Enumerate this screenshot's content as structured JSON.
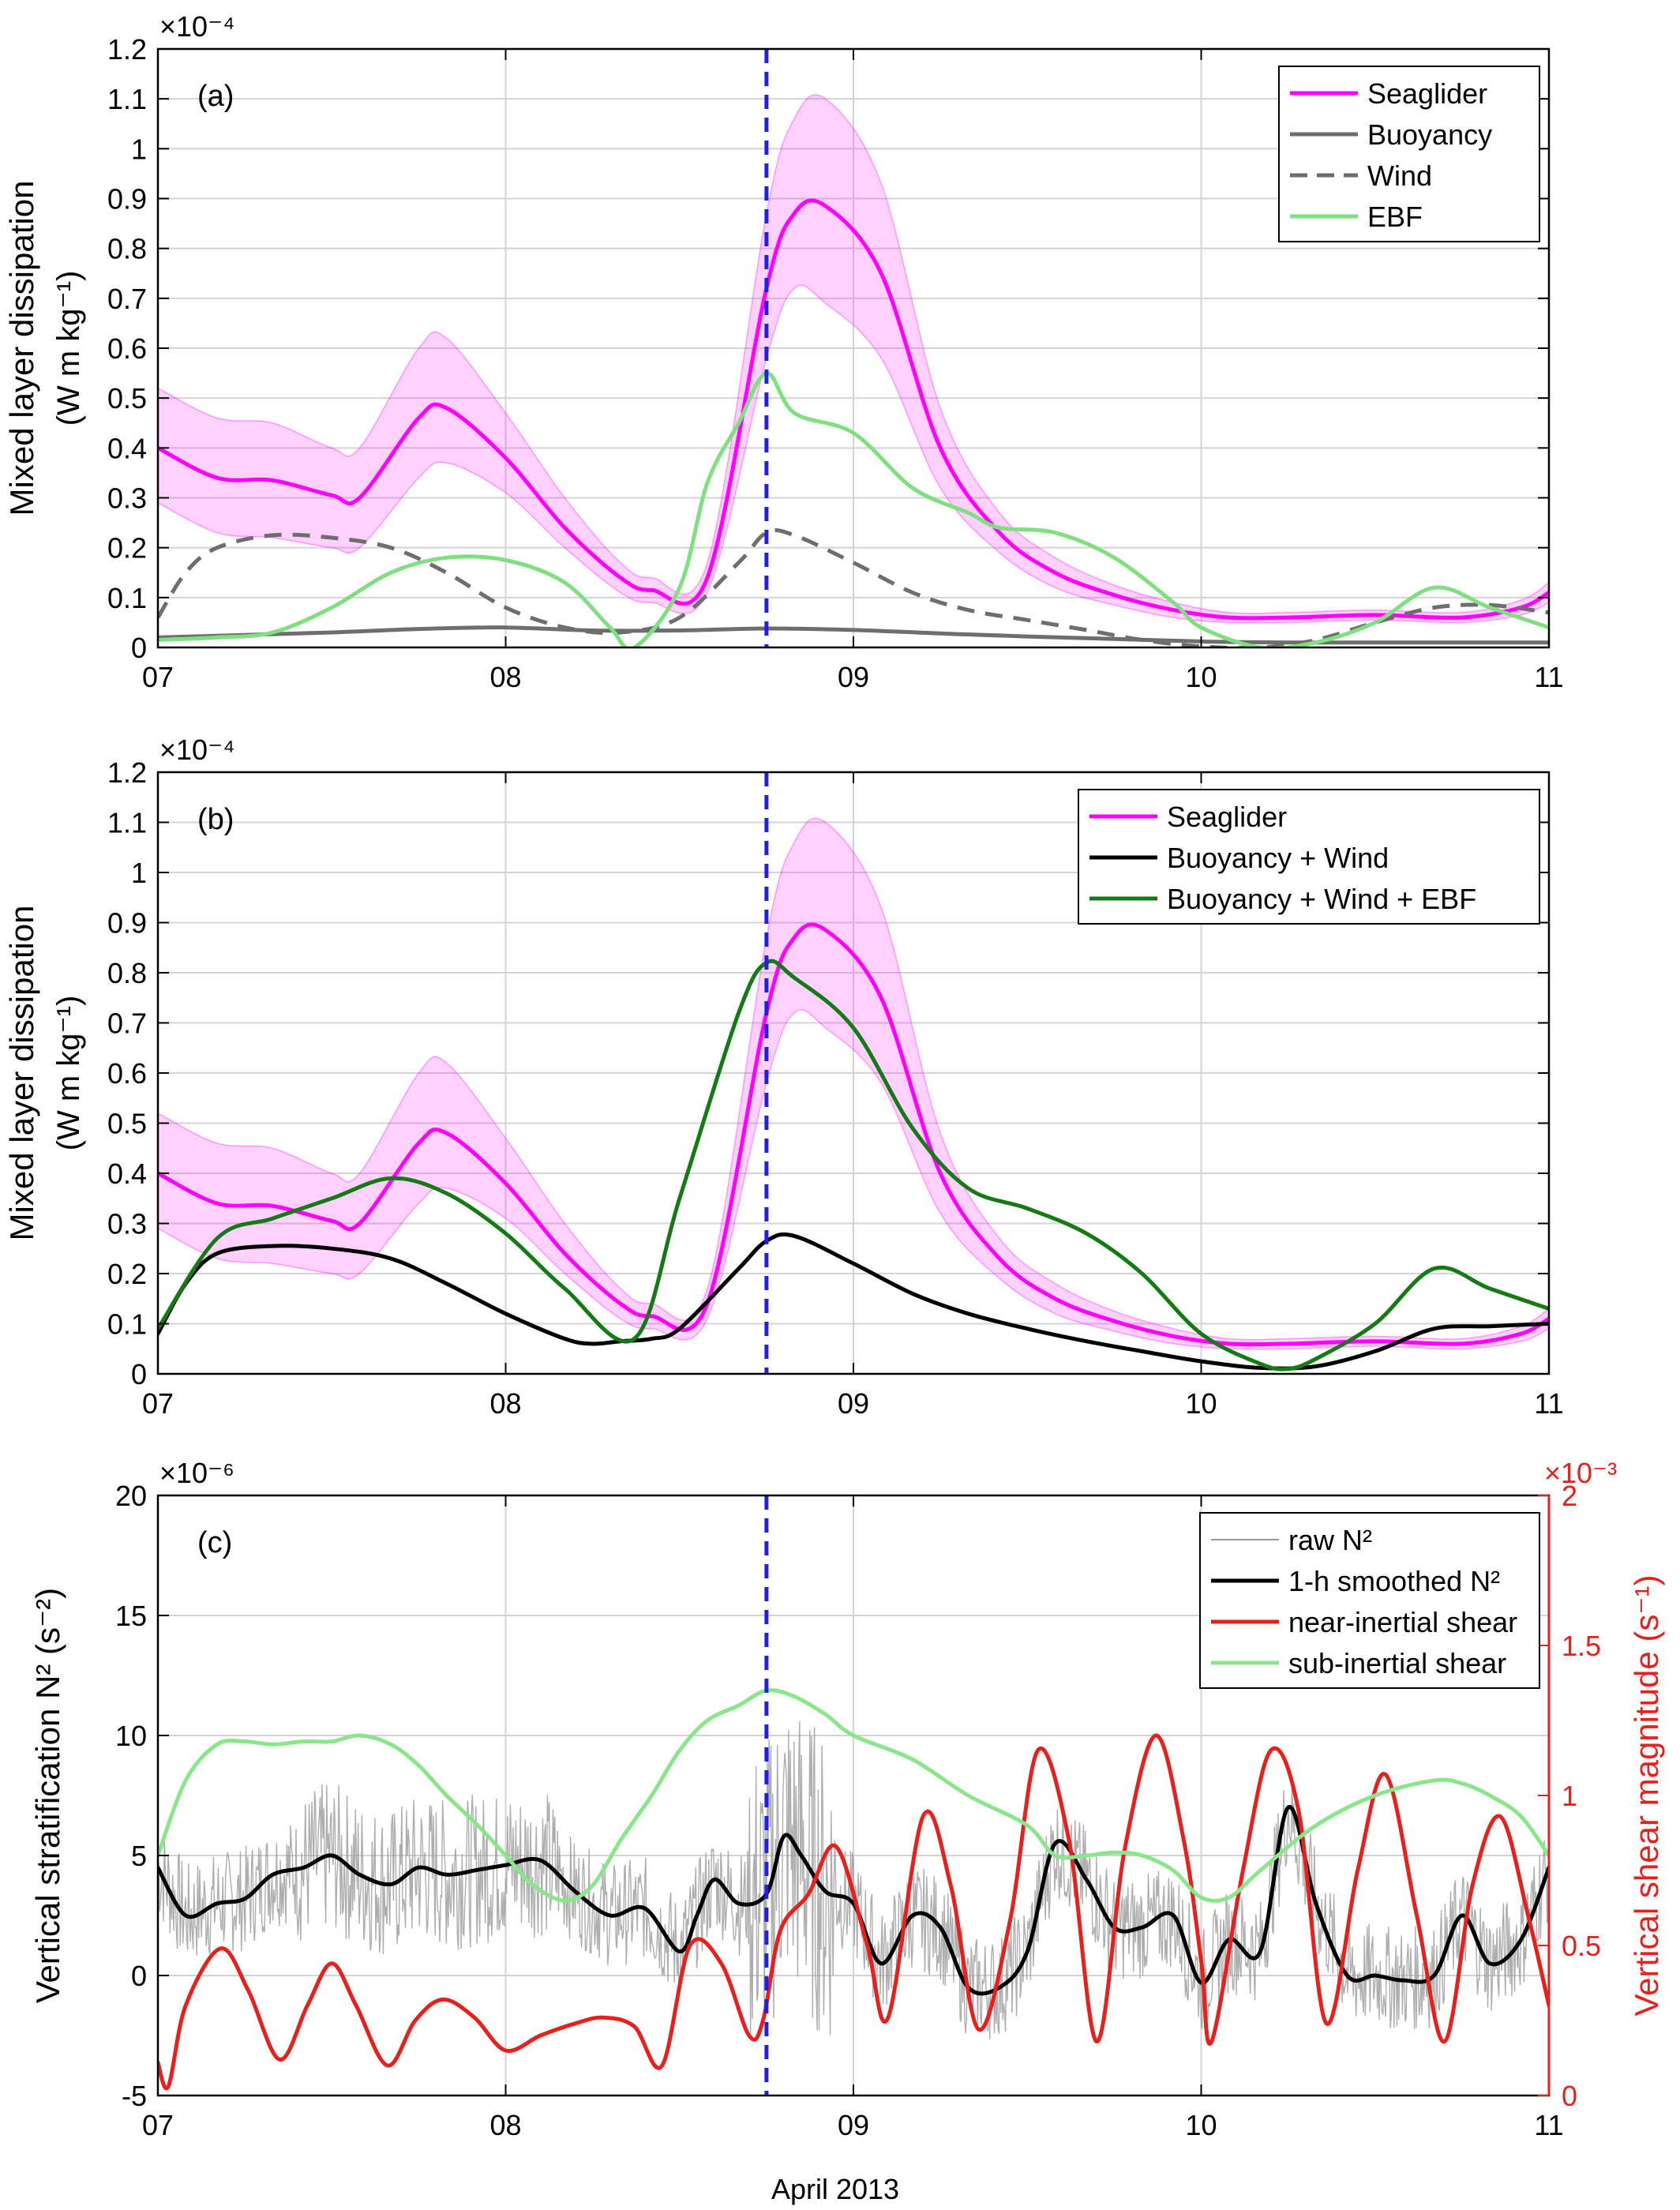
{
  "x_axis": {
    "ticks": [
      7,
      8,
      9,
      10,
      11
    ],
    "tick_labels": [
      "07",
      "08",
      "09",
      "10",
      "11"
    ],
    "label": "April 2013",
    "range": [
      7,
      11
    ]
  },
  "event_line": {
    "x": 8.75,
    "color": "#1f1fe6"
  },
  "chart_data": [
    {
      "panel": "(a)",
      "type": "line",
      "ylabel_line1": "Mixed layer dissipation",
      "ylabel_line2": "(W m kg⁻¹)",
      "y_exponent": "×10⁻⁴",
      "ylim": [
        0,
        1.2
      ],
      "yticks": [
        0,
        0.1,
        0.2,
        0.3,
        0.4,
        0.5,
        0.6,
        0.7,
        0.8,
        0.9,
        1,
        1.1,
        1.2
      ],
      "ytick_labels": [
        "0",
        "0.1",
        "0.2",
        "0.3",
        "0.4",
        "0.5",
        "0.6",
        "0.7",
        "0.8",
        "0.9",
        "1",
        "1.1",
        "1.2"
      ],
      "legend_position": "top-right",
      "series": [
        {
          "name": "Seaglider",
          "color": "#ff00ff",
          "style": "solid",
          "x": [
            7.0,
            7.17,
            7.33,
            7.5,
            7.58,
            7.75,
            7.83,
            8.0,
            8.17,
            8.33,
            8.42,
            8.58,
            8.75,
            8.83,
            8.92,
            9.08,
            9.25,
            9.42,
            9.58,
            9.75,
            9.92,
            10.08,
            10.25,
            10.5,
            10.75,
            10.92,
            11.0
          ],
          "y": [
            0.4,
            0.34,
            0.335,
            0.305,
            0.3,
            0.46,
            0.48,
            0.38,
            0.24,
            0.14,
            0.115,
            0.14,
            0.72,
            0.87,
            0.885,
            0.75,
            0.4,
            0.23,
            0.15,
            0.105,
            0.075,
            0.06,
            0.06,
            0.065,
            0.06,
            0.08,
            0.11
          ],
          "band_low": [
            0.29,
            0.23,
            0.22,
            0.2,
            0.2,
            0.34,
            0.37,
            0.31,
            0.2,
            0.11,
            0.09,
            0.11,
            0.58,
            0.72,
            0.69,
            0.58,
            0.32,
            0.19,
            0.12,
            0.085,
            0.06,
            0.05,
            0.05,
            0.055,
            0.05,
            0.065,
            0.09
          ],
          "band_high": [
            0.52,
            0.46,
            0.45,
            0.4,
            0.4,
            0.6,
            0.62,
            0.47,
            0.3,
            0.17,
            0.14,
            0.17,
            0.87,
            1.06,
            1.1,
            0.93,
            0.48,
            0.27,
            0.18,
            0.125,
            0.09,
            0.07,
            0.07,
            0.075,
            0.07,
            0.095,
            0.13
          ]
        },
        {
          "name": "Buoyancy",
          "color": "#6e6e6e",
          "style": "solid",
          "x": [
            7.0,
            7.25,
            7.5,
            7.75,
            8.0,
            8.25,
            8.5,
            8.75,
            9.0,
            9.25,
            9.5,
            9.75,
            10.0,
            10.25,
            10.5,
            10.75,
            11.0
          ],
          "y": [
            0.02,
            0.025,
            0.03,
            0.037,
            0.04,
            0.034,
            0.034,
            0.038,
            0.035,
            0.028,
            0.022,
            0.017,
            0.012,
            0.01,
            0.01,
            0.01,
            0.01
          ]
        },
        {
          "name": "Wind",
          "color": "#6e6e6e",
          "style": "dashed",
          "x": [
            7.0,
            7.08,
            7.17,
            7.33,
            7.5,
            7.67,
            7.83,
            8.0,
            8.17,
            8.33,
            8.5,
            8.67,
            8.75,
            8.83,
            9.0,
            9.17,
            9.33,
            9.5,
            9.67,
            9.83,
            10.0,
            10.17,
            10.33,
            10.5,
            10.67,
            10.83,
            11.0
          ],
          "y": [
            0.06,
            0.15,
            0.2,
            0.225,
            0.22,
            0.2,
            0.15,
            0.08,
            0.04,
            0.03,
            0.06,
            0.17,
            0.23,
            0.225,
            0.17,
            0.11,
            0.075,
            0.055,
            0.035,
            0.015,
            0.002,
            0.0,
            0.015,
            0.05,
            0.08,
            0.085,
            0.07
          ]
        },
        {
          "name": "EBF",
          "color": "#7fe07f",
          "style": "solid",
          "x": [
            7.0,
            7.17,
            7.33,
            7.5,
            7.67,
            7.83,
            8.0,
            8.17,
            8.3,
            8.37,
            8.5,
            8.58,
            8.67,
            8.75,
            8.83,
            9.0,
            9.17,
            9.33,
            9.42,
            9.58,
            9.75,
            9.92,
            10.0,
            10.17,
            10.33,
            10.5,
            10.67,
            10.83,
            11.0
          ],
          "y": [
            0.015,
            0.02,
            0.03,
            0.08,
            0.15,
            0.18,
            0.175,
            0.13,
            0.04,
            0.0,
            0.12,
            0.33,
            0.45,
            0.55,
            0.47,
            0.43,
            0.32,
            0.27,
            0.24,
            0.23,
            0.18,
            0.09,
            0.04,
            0.0,
            0.01,
            0.05,
            0.12,
            0.08,
            0.04
          ]
        }
      ]
    },
    {
      "panel": "(b)",
      "type": "line",
      "ylabel_line1": "Mixed layer dissipation",
      "ylabel_line2": "(W m kg⁻¹)",
      "y_exponent": "×10⁻⁴",
      "ylim": [
        0,
        1.2
      ],
      "yticks": [
        0,
        0.1,
        0.2,
        0.3,
        0.4,
        0.5,
        0.6,
        0.7,
        0.8,
        0.9,
        1,
        1.1,
        1.2
      ],
      "ytick_labels": [
        "0",
        "0.1",
        "0.2",
        "0.3",
        "0.4",
        "0.5",
        "0.6",
        "0.7",
        "0.8",
        "0.9",
        "1",
        "1.1",
        "1.2"
      ],
      "legend_position": "top-right",
      "series": [
        {
          "name": "Seaglider",
          "color": "#ff00ff",
          "style": "solid",
          "x": [
            7.0,
            7.17,
            7.33,
            7.5,
            7.58,
            7.75,
            7.83,
            8.0,
            8.17,
            8.33,
            8.42,
            8.58,
            8.75,
            8.83,
            8.92,
            9.08,
            9.25,
            9.42,
            9.58,
            9.75,
            9.92,
            10.08,
            10.25,
            10.5,
            10.75,
            10.92,
            11.0
          ],
          "y": [
            0.4,
            0.34,
            0.335,
            0.305,
            0.3,
            0.46,
            0.48,
            0.38,
            0.24,
            0.14,
            0.115,
            0.14,
            0.72,
            0.87,
            0.885,
            0.75,
            0.4,
            0.23,
            0.15,
            0.105,
            0.075,
            0.06,
            0.06,
            0.065,
            0.06,
            0.08,
            0.11
          ],
          "band_low": [
            0.29,
            0.23,
            0.22,
            0.2,
            0.2,
            0.34,
            0.37,
            0.31,
            0.2,
            0.11,
            0.09,
            0.11,
            0.58,
            0.72,
            0.69,
            0.58,
            0.32,
            0.19,
            0.12,
            0.085,
            0.06,
            0.05,
            0.05,
            0.055,
            0.05,
            0.065,
            0.09
          ],
          "band_high": [
            0.52,
            0.46,
            0.45,
            0.4,
            0.4,
            0.6,
            0.62,
            0.47,
            0.3,
            0.17,
            0.14,
            0.17,
            0.87,
            1.06,
            1.1,
            0.93,
            0.48,
            0.27,
            0.18,
            0.125,
            0.09,
            0.07,
            0.07,
            0.075,
            0.07,
            0.095,
            0.13
          ]
        },
        {
          "name": "Buoyancy + Wind",
          "color": "#000000",
          "style": "solid",
          "x": [
            7.0,
            7.08,
            7.17,
            7.33,
            7.5,
            7.67,
            7.83,
            8.0,
            8.17,
            8.25,
            8.33,
            8.42,
            8.5,
            8.67,
            8.75,
            8.83,
            9.0,
            9.17,
            9.33,
            9.5,
            9.67,
            9.83,
            10.0,
            10.17,
            10.33,
            10.5,
            10.67,
            10.83,
            11.0
          ],
          "y": [
            0.08,
            0.18,
            0.24,
            0.255,
            0.25,
            0.23,
            0.18,
            0.12,
            0.07,
            0.06,
            0.065,
            0.07,
            0.09,
            0.21,
            0.265,
            0.275,
            0.22,
            0.16,
            0.12,
            0.09,
            0.065,
            0.045,
            0.025,
            0.012,
            0.015,
            0.045,
            0.09,
            0.095,
            0.1
          ]
        },
        {
          "name": "Buoyancy + Wind + EBF",
          "color": "#147a14",
          "style": "solid",
          "x": [
            7.0,
            7.17,
            7.33,
            7.5,
            7.67,
            7.83,
            8.0,
            8.17,
            8.37,
            8.5,
            8.67,
            8.75,
            8.83,
            9.0,
            9.17,
            9.33,
            9.5,
            9.67,
            9.83,
            10.0,
            10.17,
            10.25,
            10.33,
            10.5,
            10.67,
            10.83,
            11.0
          ],
          "y": [
            0.09,
            0.27,
            0.31,
            0.35,
            0.39,
            0.36,
            0.28,
            0.17,
            0.07,
            0.35,
            0.72,
            0.82,
            0.79,
            0.69,
            0.49,
            0.37,
            0.33,
            0.28,
            0.2,
            0.08,
            0.02,
            0.01,
            0.03,
            0.1,
            0.21,
            0.17,
            0.13
          ]
        }
      ]
    },
    {
      "panel": "(c)",
      "type": "line",
      "ylabel": "Vertical stratification N² (s⁻²)",
      "y_exponent": "×10⁻⁶",
      "ylim": [
        -5,
        20
      ],
      "yticks": [
        -5,
        0,
        5,
        10,
        15,
        20
      ],
      "ytick_labels": [
        "-5",
        "0",
        "5",
        "10",
        "15",
        "20"
      ],
      "y2label": "Vertical shear magnitude (s⁻¹)",
      "y2_exponent": "×10⁻³",
      "y2lim": [
        0,
        2
      ],
      "y2ticks": [
        0,
        0.5,
        1,
        1.5,
        2
      ],
      "y2tick_labels": [
        "0",
        "0.5",
        "1",
        "1.5",
        "2"
      ],
      "y2_color": "#e8201c",
      "legend_position": "top-right",
      "series": [
        {
          "name": "raw N²",
          "color": "#9a9a9a",
          "style": "solid",
          "axis": "left",
          "noise_around": "1-h smoothed N²"
        },
        {
          "name": "1-h smoothed N²",
          "color": "#000000",
          "style": "solid",
          "axis": "left",
          "x": [
            7.0,
            7.08,
            7.17,
            7.25,
            7.33,
            7.42,
            7.5,
            7.58,
            7.67,
            7.75,
            7.83,
            7.92,
            8.0,
            8.1,
            8.2,
            8.3,
            8.4,
            8.5,
            8.55,
            8.6,
            8.67,
            8.75,
            8.8,
            8.85,
            8.92,
            9.0,
            9.08,
            9.17,
            9.25,
            9.33,
            9.42,
            9.5,
            9.58,
            9.67,
            9.75,
            9.83,
            9.92,
            10.0,
            10.08,
            10.17,
            10.25,
            10.33,
            10.42,
            10.5,
            10.58,
            10.67,
            10.75,
            10.83,
            10.92,
            11.0
          ],
          "y": [
            4.5,
            2.5,
            3.0,
            3.2,
            4.2,
            4.5,
            5.0,
            4.2,
            3.8,
            4.5,
            4.2,
            4.4,
            4.6,
            4.8,
            3.5,
            2.5,
            2.8,
            1.0,
            2.5,
            4.0,
            3.0,
            3.4,
            5.8,
            5.0,
            3.5,
            3.0,
            0.5,
            2.5,
            2.0,
            -0.5,
            -0.5,
            1.0,
            5.5,
            4.0,
            2.0,
            2.0,
            2.5,
            -0.3,
            1.5,
            1.0,
            7.0,
            3.0,
            0.0,
            0.0,
            -0.2,
            0.0,
            2.5,
            0.5,
            1.5,
            4.5
          ]
        },
        {
          "name": "near-inertial shear",
          "color": "#e8201c",
          "style": "solid",
          "axis": "right",
          "x": [
            7.0,
            7.03,
            7.08,
            7.18,
            7.26,
            7.35,
            7.43,
            7.5,
            7.57,
            7.66,
            7.74,
            7.82,
            7.91,
            8.0,
            8.1,
            8.2,
            8.28,
            8.37,
            8.45,
            8.53,
            8.62,
            8.7,
            8.74,
            8.79,
            8.87,
            8.95,
            9.04,
            9.1,
            9.2,
            9.28,
            9.36,
            9.45,
            9.53,
            9.62,
            9.7,
            9.78,
            9.87,
            9.95,
            10.0,
            10.03,
            10.12,
            10.2,
            10.28,
            10.36,
            10.45,
            10.53,
            10.62,
            10.7,
            10.78,
            10.86,
            10.94,
            11.0
          ],
          "y": [
            0.11,
            0.03,
            0.3,
            0.49,
            0.35,
            0.12,
            0.3,
            0.44,
            0.3,
            0.1,
            0.25,
            0.32,
            0.26,
            0.15,
            0.2,
            0.24,
            0.26,
            0.23,
            0.1,
            0.5,
            0.44,
            0.2,
            0.25,
            0.55,
            0.67,
            0.83,
            0.5,
            0.26,
            0.93,
            0.7,
            0.22,
            0.58,
            1.15,
            0.85,
            0.18,
            0.82,
            1.2,
            0.85,
            0.45,
            0.18,
            0.75,
            1.15,
            0.95,
            0.24,
            0.75,
            1.07,
            0.6,
            0.18,
            0.7,
            0.93,
            0.6,
            0.3
          ]
        },
        {
          "name": "sub-inertial shear",
          "color": "#8ae68a",
          "style": "solid",
          "axis": "right",
          "x": [
            7.0,
            7.08,
            7.17,
            7.25,
            7.33,
            7.42,
            7.5,
            7.58,
            7.67,
            7.75,
            7.83,
            7.92,
            8.0,
            8.08,
            8.17,
            8.25,
            8.33,
            8.42,
            8.5,
            8.58,
            8.67,
            8.75,
            8.83,
            8.92,
            9.0,
            9.17,
            9.33,
            9.5,
            9.58,
            9.67,
            9.75,
            9.83,
            9.92,
            10.0,
            10.08,
            10.17,
            10.33,
            10.5,
            10.67,
            10.75,
            10.83,
            10.92,
            11.0
          ],
          "y": [
            0.8,
            1.05,
            1.17,
            1.18,
            1.17,
            1.18,
            1.18,
            1.2,
            1.17,
            1.1,
            1.0,
            0.9,
            0.8,
            0.7,
            0.65,
            0.7,
            0.85,
            1.0,
            1.15,
            1.25,
            1.3,
            1.35,
            1.33,
            1.27,
            1.2,
            1.12,
            1.0,
            0.9,
            0.8,
            0.8,
            0.81,
            0.8,
            0.75,
            0.66,
            0.66,
            0.75,
            0.9,
            1.0,
            1.05,
            1.04,
            1.0,
            0.93,
            0.8
          ]
        }
      ]
    }
  ]
}
